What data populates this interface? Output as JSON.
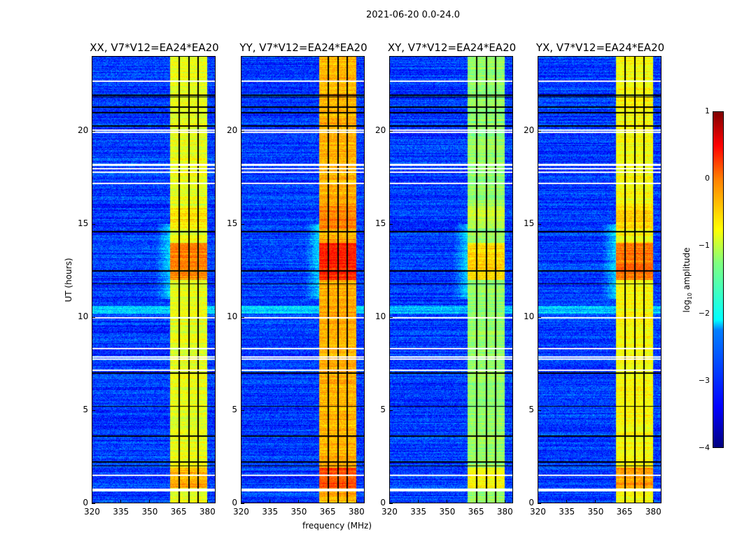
{
  "chart_data": {
    "type": "heatmap",
    "title": "2021-06-20 0.0-24.0",
    "xlabel": "frequency (MHz)",
    "ylabel": "UT (hours)",
    "xlim": [
      320,
      384.4
    ],
    "ylim": [
      0,
      24
    ],
    "xticks": [
      320,
      335,
      350,
      365,
      380
    ],
    "yticks": [
      0,
      5,
      10,
      15,
      20
    ],
    "panels": [
      {
        "title": "XX, V7*V12=EA24*EA20",
        "band_level": -1.0
      },
      {
        "title": "YY, V7*V12=EA24*EA20",
        "band_level": -0.5
      },
      {
        "title": "XY, V7*V12=EA24*EA20",
        "band_level": -1.4
      },
      {
        "title": "YX, V7*V12=EA24*EA20",
        "band_level": -0.9
      }
    ],
    "band_mhz": [
      360.7,
      380
    ],
    "subband_gaps_mhz": [
      365.5,
      370.5,
      375.4
    ],
    "background_level": -3.1,
    "flagged_white_hours": [
      0.65,
      0.75,
      1.5,
      7.15,
      7.75,
      7.85,
      8.3,
      9.95,
      17.2,
      17.8,
      18.0,
      18.2,
      19.95,
      20.05,
      22.7
    ],
    "flagged_black_hours": [
      2.0,
      2.2,
      3.6,
      5.2,
      7.0,
      11.8,
      12.5,
      14.6,
      20.3,
      21.0,
      21.3,
      21.85,
      21.95
    ],
    "colorbar": {
      "label_prefix": "log",
      "label_sub": "10",
      "label_suffix": " amplitude",
      "ticks": [
        1,
        0,
        -1,
        -2,
        -3,
        -4
      ],
      "tick_labels": [
        "1",
        "0",
        "−1",
        "−2",
        "−3",
        "−4"
      ],
      "range": [
        -4,
        1
      ],
      "colormap": "jet"
    }
  }
}
